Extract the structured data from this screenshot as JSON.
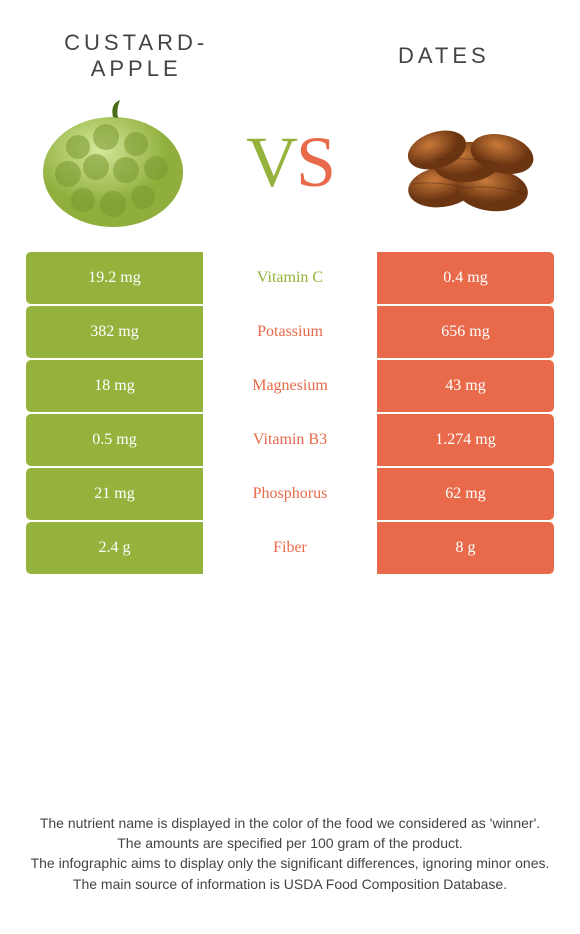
{
  "colors": {
    "left": "#94b23c",
    "right": "#e86a4a"
  },
  "foods": {
    "left": {
      "title": "CUSTARD-\nAPPLE"
    },
    "right": {
      "title": "DATES"
    }
  },
  "vs": {
    "v": "V",
    "s": "S"
  },
  "rows": [
    {
      "nutrient": "Vitamin C",
      "left": "19.2 mg",
      "right": "0.4 mg",
      "winner": "left"
    },
    {
      "nutrient": "Potassium",
      "left": "382 mg",
      "right": "656 mg",
      "winner": "right"
    },
    {
      "nutrient": "Magnesium",
      "left": "18 mg",
      "right": "43 mg",
      "winner": "right"
    },
    {
      "nutrient": "Vitamin B3",
      "left": "0.5 mg",
      "right": "1.274 mg",
      "winner": "right"
    },
    {
      "nutrient": "Phosphorus",
      "left": "21 mg",
      "right": "62 mg",
      "winner": "right"
    },
    {
      "nutrient": "Fiber",
      "left": "2.4 g",
      "right": "8 g",
      "winner": "right"
    }
  ],
  "footer": [
    "The nutrient name is displayed in the color of the food we considered as 'winner'.",
    "The amounts are specified per 100 gram of the product.",
    "The infographic aims to display only the significant differences, ignoring minor ones.",
    "The main source of information is USDA Food Composition Database."
  ]
}
